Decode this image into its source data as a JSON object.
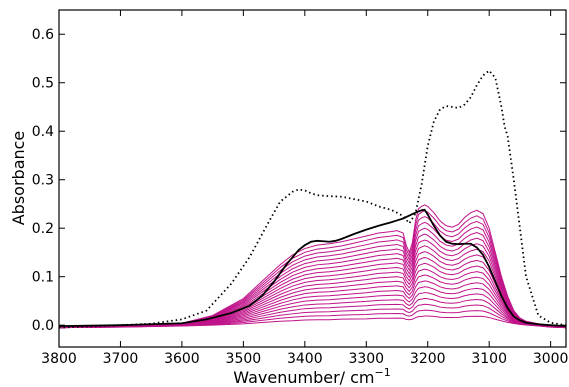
{
  "chart_data": {
    "type": "line",
    "xlabel": "Wavenumber/ cm",
    "xlabel_superscript": "−1",
    "ylabel": "Absorbance",
    "xlim": [
      3800,
      2975
    ],
    "ylim": [
      -0.045,
      0.65
    ],
    "x_ticks": [
      3800,
      3700,
      3600,
      3500,
      3400,
      3300,
      3200,
      3100,
      3000
    ],
    "y_ticks": [
      0.0,
      0.1,
      0.2,
      0.3,
      0.4,
      0.5,
      0.6
    ],
    "y_tick_labels": [
      "0.0",
      "0.1",
      "0.2",
      "0.3",
      "0.4",
      "0.5",
      "0.6"
    ],
    "x_tick_labels": [
      "3800",
      "3700",
      "3600",
      "3500",
      "3400",
      "3300",
      "3200",
      "3100",
      "3000"
    ],
    "grid": false,
    "colors": {
      "series": "#c0138a",
      "reference": "#000000",
      "frame": "#000000"
    },
    "reference_dotted": {
      "x": [
        3800,
        3700,
        3650,
        3600,
        3560,
        3520,
        3490,
        3460,
        3440,
        3420,
        3410,
        3400,
        3390,
        3380,
        3360,
        3340,
        3320,
        3300,
        3280,
        3260,
        3250,
        3240,
        3230,
        3220,
        3210,
        3200,
        3190,
        3180,
        3170,
        3160,
        3150,
        3140,
        3130,
        3120,
        3110,
        3100,
        3090,
        3080,
        3075,
        3070,
        3060,
        3050,
        3040,
        3020,
        3000,
        2975
      ],
      "y": [
        -0.005,
        0.0,
        0.003,
        0.012,
        0.03,
        0.085,
        0.14,
        0.21,
        0.255,
        0.275,
        0.28,
        0.278,
        0.272,
        0.268,
        0.266,
        0.265,
        0.26,
        0.255,
        0.245,
        0.238,
        0.232,
        0.225,
        0.21,
        0.23,
        0.29,
        0.37,
        0.42,
        0.445,
        0.452,
        0.45,
        0.448,
        0.455,
        0.47,
        0.495,
        0.515,
        0.525,
        0.51,
        0.45,
        0.41,
        0.39,
        0.3,
        0.2,
        0.1,
        0.02,
        0.005,
        0.0
      ]
    },
    "reference_solid": {
      "x": [
        3800,
        3700,
        3600,
        3560,
        3520,
        3490,
        3470,
        3450,
        3430,
        3410,
        3400,
        3390,
        3380,
        3370,
        3360,
        3350,
        3340,
        3320,
        3300,
        3280,
        3260,
        3250,
        3240,
        3230,
        3220,
        3210,
        3205,
        3200,
        3190,
        3180,
        3170,
        3160,
        3150,
        3140,
        3130,
        3120,
        3110,
        3100,
        3090,
        3080,
        3070,
        3060,
        3050,
        3040,
        3020,
        3000,
        2975
      ],
      "y": [
        -0.002,
        0.0,
        0.004,
        0.012,
        0.025,
        0.04,
        0.06,
        0.09,
        0.125,
        0.155,
        0.165,
        0.172,
        0.174,
        0.173,
        0.172,
        0.174,
        0.178,
        0.188,
        0.197,
        0.205,
        0.212,
        0.216,
        0.22,
        0.226,
        0.232,
        0.237,
        0.238,
        0.228,
        0.205,
        0.185,
        0.172,
        0.168,
        0.167,
        0.168,
        0.168,
        0.16,
        0.145,
        0.12,
        0.09,
        0.06,
        0.035,
        0.018,
        0.01,
        0.005,
        0.002,
        0.0,
        -0.002
      ]
    },
    "family": {
      "count": 20,
      "x": [
        3800,
        3700,
        3600,
        3550,
        3500,
        3470,
        3440,
        3420,
        3400,
        3380,
        3360,
        3340,
        3320,
        3300,
        3280,
        3260,
        3250,
        3240,
        3235,
        3230,
        3225,
        3220,
        3215,
        3210,
        3205,
        3200,
        3190,
        3180,
        3170,
        3160,
        3150,
        3140,
        3130,
        3120,
        3110,
        3100,
        3090,
        3080,
        3070,
        3060,
        3050,
        3040,
        3020,
        3000,
        2975
      ],
      "top": [
        -0.005,
        -0.002,
        0.004,
        0.02,
        0.055,
        0.09,
        0.125,
        0.145,
        0.158,
        0.165,
        0.168,
        0.172,
        0.178,
        0.184,
        0.19,
        0.193,
        0.195,
        0.19,
        0.165,
        0.15,
        0.17,
        0.215,
        0.24,
        0.245,
        0.248,
        0.245,
        0.232,
        0.215,
        0.205,
        0.202,
        0.208,
        0.222,
        0.232,
        0.237,
        0.23,
        0.2,
        0.15,
        0.1,
        0.06,
        0.03,
        0.015,
        0.008,
        0.003,
        -0.002,
        -0.005
      ],
      "bottom": [
        -0.005,
        -0.004,
        -0.002,
        -0.001,
        0.0,
        0.001,
        0.002,
        0.002,
        0.003,
        0.003,
        0.003,
        0.004,
        0.004,
        0.004,
        0.005,
        0.005,
        0.005,
        0.005,
        0.004,
        0.004,
        0.004,
        0.005,
        0.006,
        0.006,
        0.007,
        0.007,
        0.007,
        0.006,
        0.006,
        0.006,
        0.006,
        0.007,
        0.007,
        0.007,
        0.007,
        0.006,
        0.005,
        0.004,
        0.003,
        0.002,
        0.001,
        0.0,
        -0.002,
        -0.004,
        -0.005
      ]
    }
  }
}
